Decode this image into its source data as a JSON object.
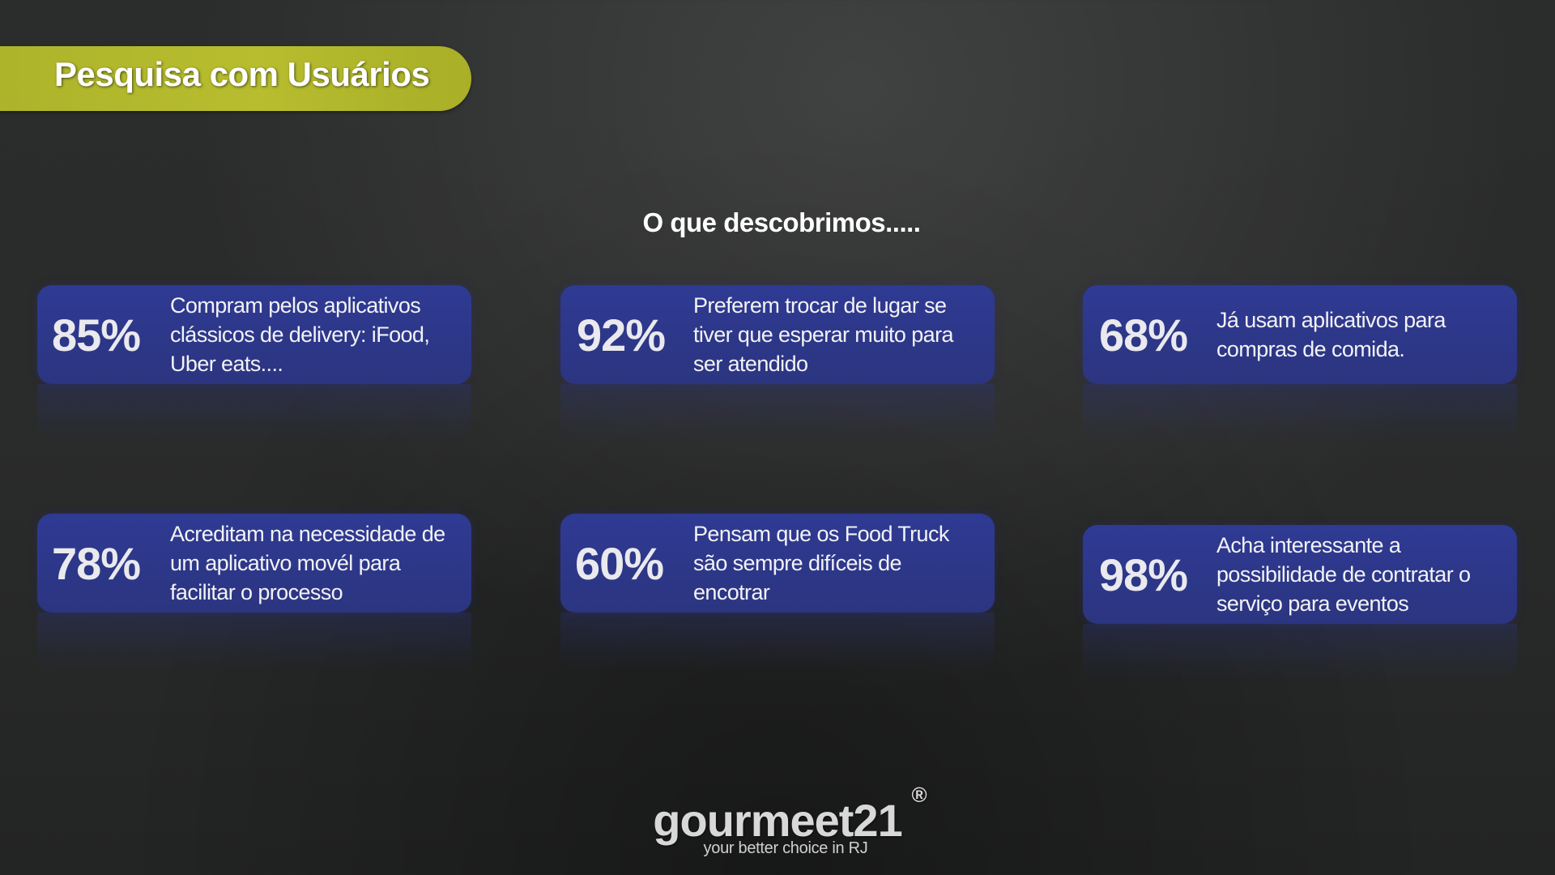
{
  "header": {
    "title": "Pesquisa com Usuários",
    "accent_color": "#b0b62b"
  },
  "subtitle": "O que descobrimos.....",
  "cards": [
    {
      "percent": "85%",
      "text": "Compram pelos aplicativos clássicos de delivery: iFood, Uber eats...."
    },
    {
      "percent": "92%",
      "text": "Preferem trocar de lugar se tiver que esperar muito para ser atendido"
    },
    {
      "percent": "68%",
      "text": "Já usam aplicativos para compras de comida."
    },
    {
      "percent": "78%",
      "text": "Acreditam na necessidade de um aplicativo movél para facilitar o processo"
    },
    {
      "percent": "60%",
      "text": "Pensam que os Food Truck são sempre difíceis de encotrar"
    },
    {
      "percent": "98%",
      "text": "Acha interessante a possibilidade de contratar o serviço para eventos"
    }
  ],
  "card_color": "#2f3a93",
  "logo": {
    "name": "gourmeet21",
    "registered": "®",
    "tagline": "your better choice in RJ"
  }
}
